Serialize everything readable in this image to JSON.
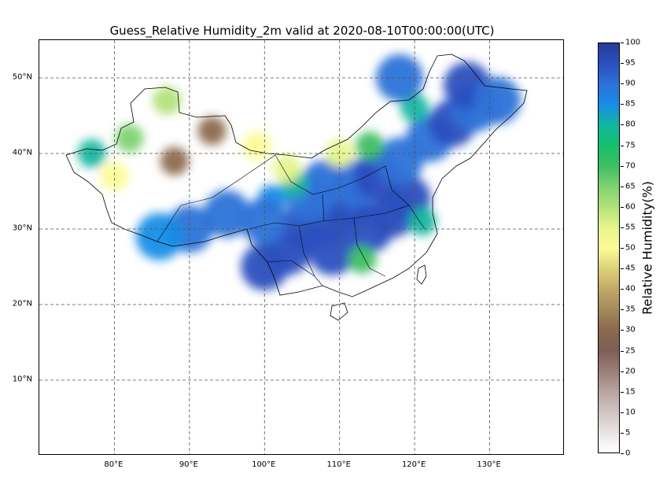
{
  "title": "Guess_Relative Humidity_2m  valid at 2020-08-10T00:00:00(UTC)",
  "map": {
    "lon_range": [
      70,
      140
    ],
    "lat_range": [
      0,
      55
    ],
    "gridlines": true,
    "x_ticks": [
      "80°E",
      "90°E",
      "100°E",
      "110°E",
      "120°E",
      "130°E"
    ],
    "y_ticks": [
      "10°N",
      "20°N",
      "30°N",
      "40°N",
      "50°N"
    ]
  },
  "colorbar": {
    "label": "Relative Humidity(%)",
    "ticks": [
      "0",
      "5",
      "10",
      "15",
      "20",
      "25",
      "30",
      "35",
      "40",
      "45",
      "50",
      "55",
      "60",
      "65",
      "70",
      "75",
      "80",
      "85",
      "90",
      "95",
      "100"
    ],
    "colors": [
      "#ffffff",
      "#e8e3e3",
      "#cfc3c3",
      "#b7a3a0",
      "#9a7d75",
      "#7d5e55",
      "#8b6a4e",
      "#a58a5c",
      "#c2a967",
      "#ddd27a",
      "#fbfc96",
      "#e6f58c",
      "#b2e27a",
      "#7fd271",
      "#3fbe63",
      "#16c06a",
      "#13b6a0",
      "#178de6",
      "#2d72d8",
      "#2b4fbf",
      "#283b9a"
    ]
  },
  "blobs": [
    {
      "lon": 103,
      "lat": 27,
      "v": 96
    },
    {
      "lon": 100,
      "lat": 25,
      "v": 97
    },
    {
      "lon": 105,
      "lat": 30,
      "v": 94
    },
    {
      "lon": 108,
      "lat": 31,
      "v": 96
    },
    {
      "lon": 111,
      "lat": 33,
      "v": 93
    },
    {
      "lon": 114,
      "lat": 30,
      "v": 95
    },
    {
      "lon": 117,
      "lat": 32,
      "v": 97
    },
    {
      "lon": 119,
      "lat": 34,
      "v": 95
    },
    {
      "lon": 112,
      "lat": 36,
      "v": 92
    },
    {
      "lon": 108,
      "lat": 36,
      "v": 90
    },
    {
      "lon": 115,
      "lat": 37,
      "v": 93
    },
    {
      "lon": 118,
      "lat": 39,
      "v": 91
    },
    {
      "lon": 109,
      "lat": 27,
      "v": 93
    },
    {
      "lon": 113,
      "lat": 26,
      "v": 68
    },
    {
      "lon": 106,
      "lat": 34,
      "v": 90
    },
    {
      "lon": 104,
      "lat": 36,
      "v": 82
    },
    {
      "lon": 101,
      "lat": 34,
      "v": 85
    },
    {
      "lon": 100,
      "lat": 31,
      "v": 88
    },
    {
      "lon": 121,
      "lat": 31,
      "v": 80
    },
    {
      "lon": 122,
      "lat": 42,
      "v": 90
    },
    {
      "lon": 125,
      "lat": 44,
      "v": 93
    },
    {
      "lon": 128,
      "lat": 46,
      "v": 90
    },
    {
      "lon": 127,
      "lat": 49,
      "v": 95
    },
    {
      "lon": 131,
      "lat": 47,
      "v": 88
    },
    {
      "lon": 120,
      "lat": 46,
      "v": 78
    },
    {
      "lon": 114,
      "lat": 41,
      "v": 72
    },
    {
      "lon": 110,
      "lat": 40,
      "v": 55
    },
    {
      "lon": 103,
      "lat": 38,
      "v": 55
    },
    {
      "lon": 95,
      "lat": 32,
      "v": 88
    },
    {
      "lon": 90,
      "lat": 30,
      "v": 90
    },
    {
      "lon": 86,
      "lat": 29,
      "v": 86
    },
    {
      "lon": 82,
      "lat": 42,
      "v": 65
    },
    {
      "lon": 87,
      "lat": 47,
      "v": 58
    },
    {
      "lon": 77,
      "lat": 40,
      "v": 80
    },
    {
      "lon": 80,
      "lat": 37,
      "v": 50
    },
    {
      "lon": 93,
      "lat": 43,
      "v": 30
    },
    {
      "lon": 88,
      "lat": 39,
      "v": 30
    },
    {
      "lon": 99,
      "lat": 41,
      "v": 50
    },
    {
      "lon": 118,
      "lat": 50,
      "v": 92
    }
  ]
}
